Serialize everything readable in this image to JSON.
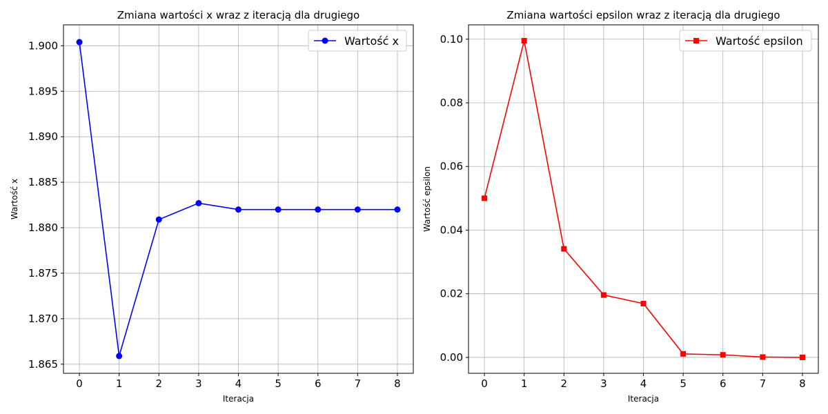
{
  "chart_data": [
    {
      "type": "line",
      "title": "Zmiana wartości x wraz z iteracją dla drugiego",
      "xlabel": "Iteracja",
      "ylabel": "Wartość x",
      "x": [
        0,
        1,
        2,
        3,
        4,
        5,
        6,
        7,
        8
      ],
      "series": [
        {
          "name": "Wartość x",
          "values": [
            1.9004,
            1.8659,
            1.8809,
            1.8827,
            1.882,
            1.882,
            1.882,
            1.882,
            1.882
          ],
          "color": "#0000ff",
          "marker": "circle"
        }
      ],
      "xlim": [
        -0.4,
        8.4
      ],
      "ylim": [
        1.864,
        1.9023
      ],
      "xticks": [
        0,
        1,
        2,
        3,
        4,
        5,
        6,
        7,
        8
      ],
      "yticks": [
        1.865,
        1.87,
        1.875,
        1.88,
        1.885,
        1.89,
        1.895,
        1.9
      ],
      "xtick_labels": [
        "0",
        "1",
        "2",
        "3",
        "4",
        "5",
        "6",
        "7",
        "8"
      ],
      "ytick_labels": [
        "1.865",
        "1.870",
        "1.875",
        "1.880",
        "1.885",
        "1.890",
        "1.895",
        "1.900"
      ],
      "grid": true,
      "legend": "top-right"
    },
    {
      "type": "line",
      "title": "Zmiana wartości epsilon wraz z iteracją dla drugiego",
      "xlabel": "Iteracja",
      "ylabel": "Wartość epsilon",
      "x": [
        0,
        1,
        2,
        3,
        4,
        5,
        6,
        7,
        8
      ],
      "series": [
        {
          "name": "Wartość epsilon",
          "values": [
            0.05,
            0.0995,
            0.0341,
            0.0196,
            0.0169,
            0.0011,
            0.0008,
            0.0001,
            0.0
          ],
          "color": "#ff0000",
          "marker": "square"
        }
      ],
      "xlim": [
        -0.4,
        8.4
      ],
      "ylim": [
        -0.005,
        0.1045
      ],
      "xticks": [
        0,
        1,
        2,
        3,
        4,
        5,
        6,
        7,
        8
      ],
      "yticks": [
        0.0,
        0.02,
        0.04,
        0.06,
        0.08,
        0.1
      ],
      "xtick_labels": [
        "0",
        "1",
        "2",
        "3",
        "4",
        "5",
        "6",
        "7",
        "8"
      ],
      "ytick_labels": [
        "0.00",
        "0.02",
        "0.04",
        "0.06",
        "0.08",
        "0.10"
      ],
      "grid": true,
      "legend": "top-right"
    }
  ]
}
